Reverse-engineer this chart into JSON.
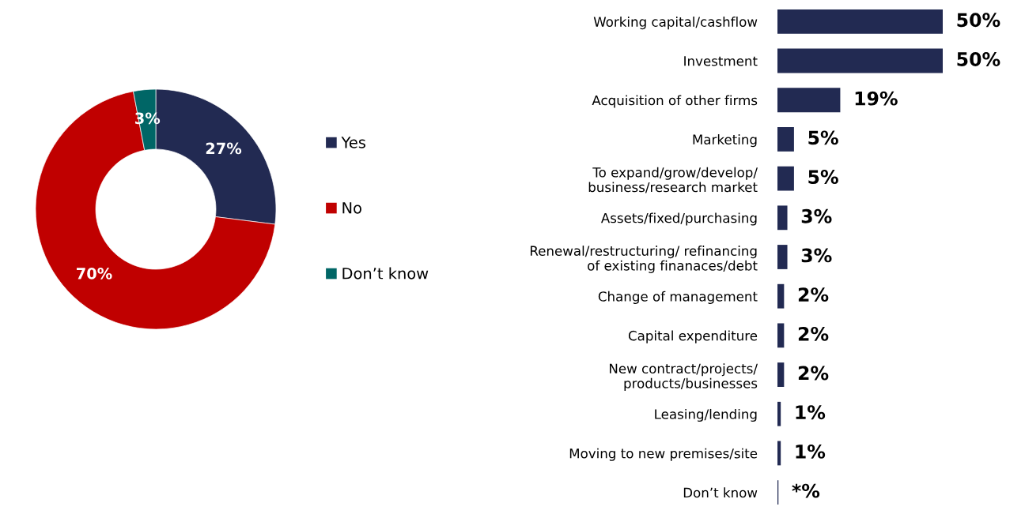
{
  "chart_data": [
    {
      "type": "donut",
      "categories": [
        "Yes",
        "No",
        "Don’t know"
      ],
      "values": [
        27,
        70,
        3
      ],
      "colors": [
        "#222a52",
        "#c00000",
        "#006666"
      ],
      "value_labels": [
        "27%",
        "70%",
        "3%"
      ],
      "legend": "right"
    },
    {
      "type": "bar",
      "orientation": "horizontal",
      "color": "#222a52",
      "categories": [
        "Working capital/cashflow",
        "Investment",
        "Acquisition of other firms",
        "Marketing",
        "To expand/grow/develop/\nbusiness/research market",
        "Assets/fixed/purchasing",
        "Renewal/restructuring/ refinancing\nof existing finanaces/debt",
        "Change of management",
        "Capital expenditure",
        "New contract/projects/\nproducts/businesses",
        "Leasing/lending",
        "Moving to new premises/site",
        "Don’t know"
      ],
      "values": [
        50,
        50,
        19,
        5,
        5,
        3,
        3,
        2,
        2,
        2,
        1,
        1,
        0.3
      ],
      "value_labels": [
        "50%",
        "50%",
        "19%",
        "5%",
        "5%",
        "3%",
        "3%",
        "2%",
        "2%",
        "2%",
        "1%",
        "1%",
        "*%"
      ],
      "xlim": [
        0,
        50
      ]
    }
  ]
}
